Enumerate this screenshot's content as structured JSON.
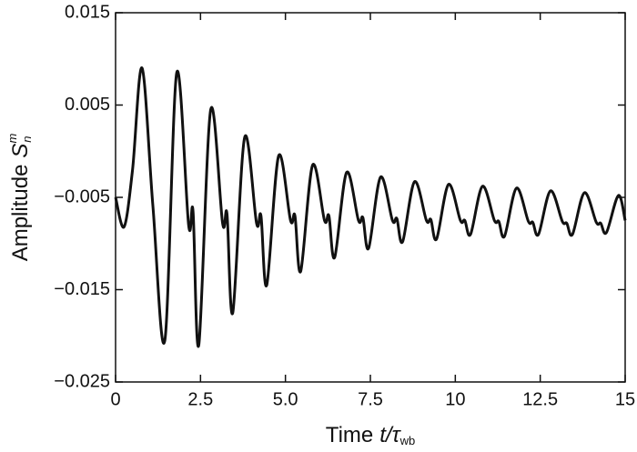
{
  "chart_data": {
    "type": "line",
    "xlabel": [
      "Time",
      "t",
      "/τ",
      "wb"
    ],
    "ylabel": [
      "Amplitude",
      "S",
      "m",
      "n"
    ],
    "xlim": [
      0,
      15
    ],
    "ylim": [
      -0.025,
      0.015
    ],
    "xticks": [
      0,
      2.5,
      {
        "value": 5,
        "label": "5.0"
      },
      7.5,
      10,
      12.5,
      15
    ],
    "yticks": [
      {
        "value": -0.025,
        "label": "−0.025"
      },
      {
        "value": -0.015,
        "label": "−0.015"
      },
      {
        "value": -0.005,
        "label": "−0.005"
      },
      0.005,
      0.015
    ],
    "grid": false,
    "series": [
      {
        "color": "#111111",
        "x": [
          0,
          0.25,
          0.5,
          0.78,
          1.1,
          1.45,
          1.8,
          2.15,
          2.28,
          2.45,
          2.8,
          3.15,
          3.28,
          3.45,
          3.8,
          4.15,
          4.28,
          4.45,
          4.8,
          5.15,
          5.28,
          5.45,
          5.8,
          6.15,
          6.28,
          6.45,
          6.8,
          7.15,
          7.28,
          7.45,
          7.8,
          8.15,
          8.28,
          8.45,
          8.8,
          9.15,
          9.28,
          9.45,
          9.8,
          10.15,
          10.28,
          10.45,
          10.8,
          11.15,
          11.28,
          11.45,
          11.8,
          12.15,
          12.28,
          12.45,
          12.8,
          13.15,
          13.28,
          13.45,
          13.8,
          14.15,
          14.28,
          14.45,
          14.8,
          15
        ],
        "values": [
          -0.005,
          -0.0082,
          -0.002,
          0.009,
          -0.006,
          -0.0205,
          0.0085,
          -0.008,
          -0.0065,
          -0.021,
          0.0045,
          -0.0078,
          -0.0068,
          -0.0175,
          0.0015,
          -0.0078,
          -0.007,
          -0.0145,
          -0.0005,
          -0.0075,
          -0.007,
          -0.013,
          -0.0015,
          -0.0075,
          -0.007,
          -0.0115,
          -0.0023,
          -0.0075,
          -0.0072,
          -0.0105,
          -0.0028,
          -0.0075,
          -0.0073,
          -0.0098,
          -0.0033,
          -0.0075,
          -0.0074,
          -0.0095,
          -0.0036,
          -0.0075,
          -0.0075,
          -0.009,
          -0.0038,
          -0.0075,
          -0.0076,
          -0.0092,
          -0.004,
          -0.0076,
          -0.0077,
          -0.009,
          -0.0043,
          -0.0076,
          -0.0078,
          -0.009,
          -0.0045,
          -0.0077,
          -0.0078,
          -0.0088,
          -0.0048,
          -0.0075
        ]
      }
    ]
  }
}
